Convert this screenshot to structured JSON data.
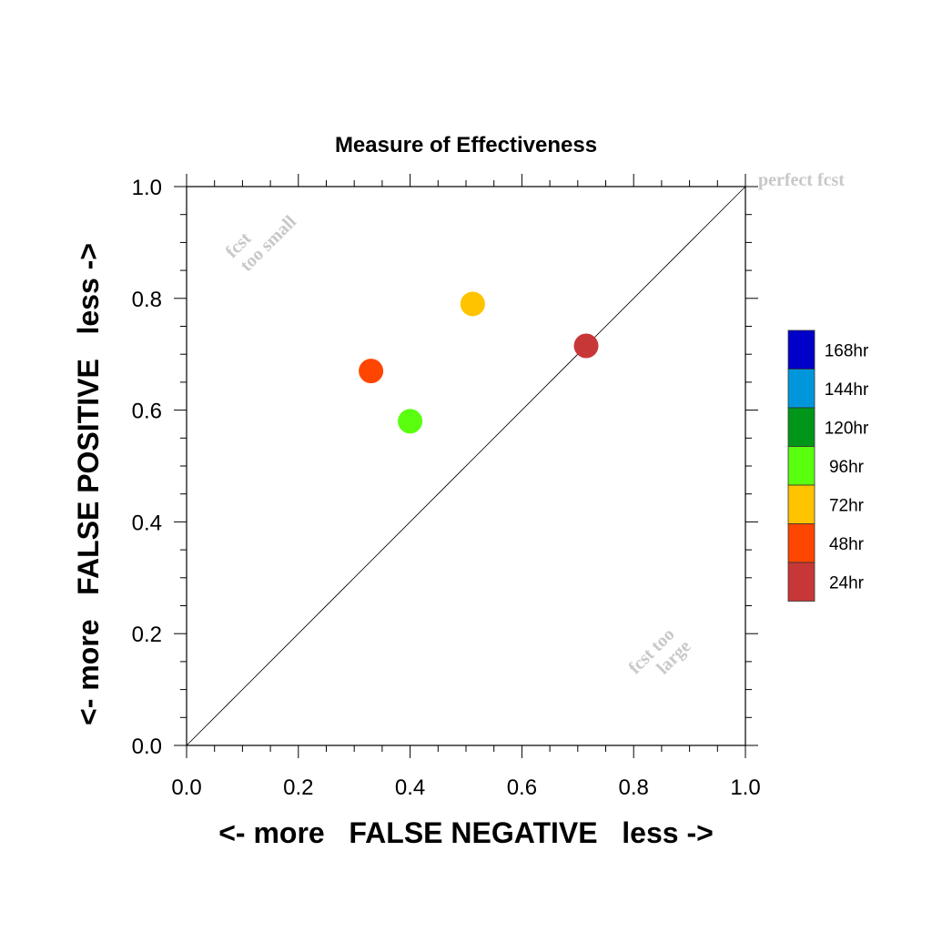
{
  "chart_data": {
    "type": "scatter",
    "title": "Measure of Effectiveness",
    "xlabel": "<- more   FALSE NEGATIVE   less ->",
    "ylabel": "<- more   FALSE POSITIVE   less ->",
    "xlim": [
      0.0,
      1.0
    ],
    "ylim": [
      0.0,
      1.0
    ],
    "x_ticks": [
      "0.0",
      "0.2",
      "0.4",
      "0.6",
      "0.8",
      "1.0"
    ],
    "y_ticks": [
      "0.0",
      "0.2",
      "0.4",
      "0.6",
      "0.8",
      "1.0"
    ],
    "grid": false,
    "reference_line": "diagonal",
    "annotations": {
      "perfect": "perfect fcst",
      "too_small": [
        "fcst",
        "too small"
      ],
      "too_large": [
        "fcst too",
        "large"
      ]
    },
    "legend_position": "right",
    "legend": [
      {
        "label": "168hr",
        "color": "#0000c8"
      },
      {
        "label": "144hr",
        "color": "#0096dc"
      },
      {
        "label": "120hr",
        "color": "#009619"
      },
      {
        "label": "96hr",
        "color": "#5aff0f"
      },
      {
        "label": "72hr",
        "color": "#ffc300"
      },
      {
        "label": "48hr",
        "color": "#ff4600"
      },
      {
        "label": "24hr",
        "color": "#c83737"
      }
    ],
    "points": [
      {
        "label": "24hr",
        "x": 0.715,
        "y": 0.715,
        "color": "#c83737"
      },
      {
        "label": "48hr",
        "x": 0.33,
        "y": 0.67,
        "color": "#ff4600"
      },
      {
        "label": "72hr",
        "x": 0.512,
        "y": 0.79,
        "color": "#ffc300"
      },
      {
        "label": "96hr",
        "x": 0.4,
        "y": 0.58,
        "color": "#5aff0f"
      }
    ]
  }
}
